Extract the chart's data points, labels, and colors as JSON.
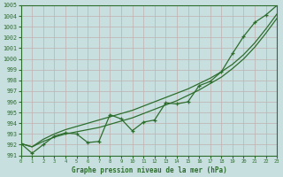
{
  "title": "Graphe pression niveau de la mer (hPa)",
  "bg_color": "#c8dfe0",
  "grid_color": "#b0c8ca",
  "line_color": "#2d6e2d",
  "ylim": [
    991,
    1005
  ],
  "xlim": [
    0,
    23
  ],
  "yticks": [
    991,
    992,
    993,
    994,
    995,
    996,
    997,
    998,
    999,
    1000,
    1001,
    1002,
    1003,
    1004,
    1005
  ],
  "xticks": [
    0,
    1,
    2,
    3,
    4,
    5,
    6,
    7,
    8,
    9,
    10,
    11,
    12,
    13,
    14,
    15,
    16,
    17,
    18,
    19,
    20,
    21,
    22,
    23
  ],
  "x": [
    0,
    1,
    2,
    3,
    4,
    5,
    6,
    7,
    8,
    9,
    10,
    11,
    12,
    13,
    14,
    15,
    16,
    17,
    18,
    19,
    20,
    21,
    22,
    23
  ],
  "trend1": [
    992.1,
    991.8,
    992.3,
    992.7,
    993.0,
    993.2,
    993.4,
    993.6,
    993.9,
    994.2,
    994.5,
    994.9,
    995.3,
    995.7,
    996.1,
    996.6,
    997.1,
    997.7,
    998.3,
    999.1,
    1000.0,
    1001.1,
    1002.4,
    1003.8
  ],
  "trend2": [
    992.1,
    991.8,
    992.5,
    993.0,
    993.4,
    993.7,
    994.0,
    994.3,
    994.6,
    994.9,
    995.2,
    995.6,
    996.0,
    996.4,
    996.8,
    997.2,
    997.7,
    998.2,
    998.8,
    999.5,
    1000.4,
    1001.5,
    1002.8,
    1004.2
  ],
  "measured": [
    992.1,
    991.2,
    992.0,
    992.8,
    993.1,
    993.0,
    992.2,
    992.3,
    994.8,
    994.4,
    993.3,
    994.1,
    994.3,
    995.9,
    995.8,
    996.0,
    997.5,
    997.9,
    998.8,
    1000.5,
    1002.1,
    1003.4,
    1004.1,
    1005.0
  ]
}
